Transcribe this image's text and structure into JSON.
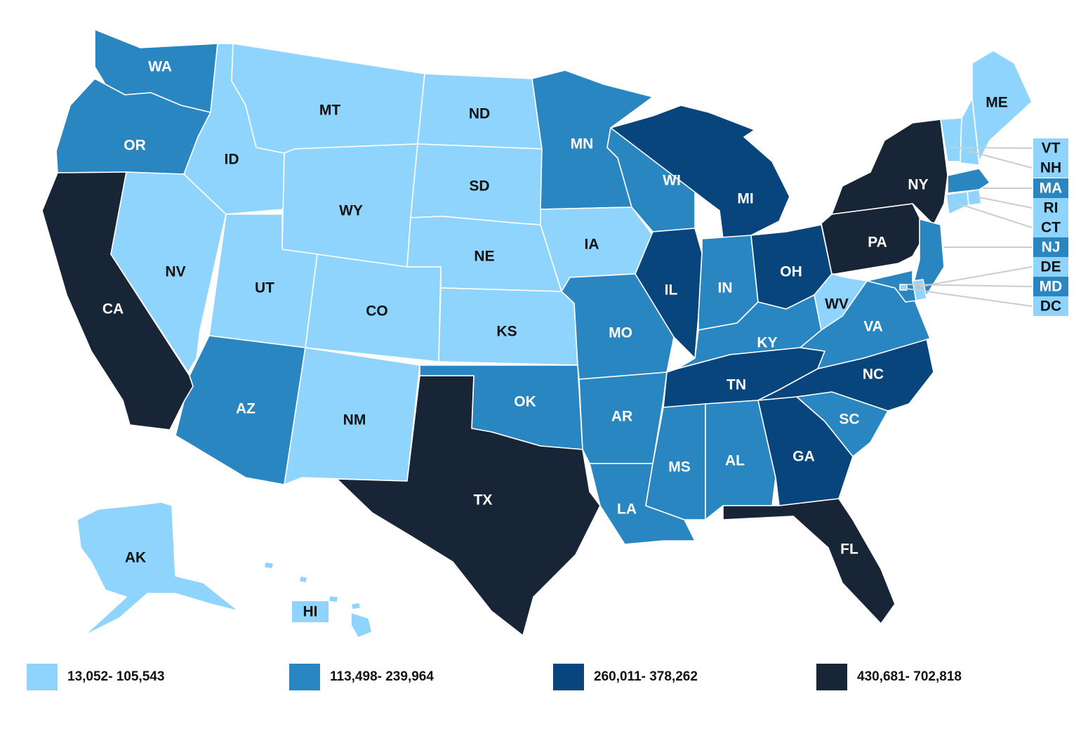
{
  "colors": {
    "tier1": "#8fd4fd",
    "tier2": "#2a86c1",
    "tier3": "#07457c",
    "tier4": "#172536"
  },
  "label_colors": {
    "tier1": "#111111",
    "tier2": "#ffffff",
    "tier3": "#ffffff",
    "tier4": "#ffffff"
  },
  "legend": [
    {
      "tier": "tier1",
      "label": "13,052- 105,543"
    },
    {
      "tier": "tier2",
      "label": "113,498- 239,964"
    },
    {
      "tier": "tier3",
      "label": "260,011- 378,262"
    },
    {
      "tier": "tier4",
      "label": "430,681- 702,818"
    }
  ],
  "states": {
    "WA": {
      "tier": "tier2"
    },
    "OR": {
      "tier": "tier2"
    },
    "CA": {
      "tier": "tier4"
    },
    "NV": {
      "tier": "tier1"
    },
    "ID": {
      "tier": "tier1"
    },
    "MT": {
      "tier": "tier1"
    },
    "WY": {
      "tier": "tier1"
    },
    "UT": {
      "tier": "tier1"
    },
    "AZ": {
      "tier": "tier2"
    },
    "CO": {
      "tier": "tier1"
    },
    "NM": {
      "tier": "tier1"
    },
    "ND": {
      "tier": "tier1"
    },
    "SD": {
      "tier": "tier1"
    },
    "NE": {
      "tier": "tier1"
    },
    "KS": {
      "tier": "tier1"
    },
    "OK": {
      "tier": "tier2"
    },
    "TX": {
      "tier": "tier4"
    },
    "MN": {
      "tier": "tier2"
    },
    "IA": {
      "tier": "tier1"
    },
    "MO": {
      "tier": "tier2"
    },
    "AR": {
      "tier": "tier2"
    },
    "LA": {
      "tier": "tier2"
    },
    "WI": {
      "tier": "tier2"
    },
    "IL": {
      "tier": "tier3"
    },
    "MI": {
      "tier": "tier3"
    },
    "IN": {
      "tier": "tier2"
    },
    "OH": {
      "tier": "tier3"
    },
    "KY": {
      "tier": "tier2"
    },
    "TN": {
      "tier": "tier3"
    },
    "MS": {
      "tier": "tier2"
    },
    "AL": {
      "tier": "tier2"
    },
    "GA": {
      "tier": "tier3"
    },
    "FL": {
      "tier": "tier4"
    },
    "SC": {
      "tier": "tier2"
    },
    "NC": {
      "tier": "tier3"
    },
    "VA": {
      "tier": "tier2"
    },
    "WV": {
      "tier": "tier1"
    },
    "PA": {
      "tier": "tier4"
    },
    "NY": {
      "tier": "tier4"
    },
    "ME": {
      "tier": "tier1"
    },
    "VT": {
      "tier": "tier1"
    },
    "NH": {
      "tier": "tier1"
    },
    "MA": {
      "tier": "tier2"
    },
    "RI": {
      "tier": "tier1"
    },
    "CT": {
      "tier": "tier1"
    },
    "NJ": {
      "tier": "tier2"
    },
    "DE": {
      "tier": "tier1"
    },
    "MD": {
      "tier": "tier2"
    },
    "DC": {
      "tier": "tier1"
    },
    "AK": {
      "tier": "tier1"
    },
    "HI": {
      "tier": "tier1"
    }
  }
}
